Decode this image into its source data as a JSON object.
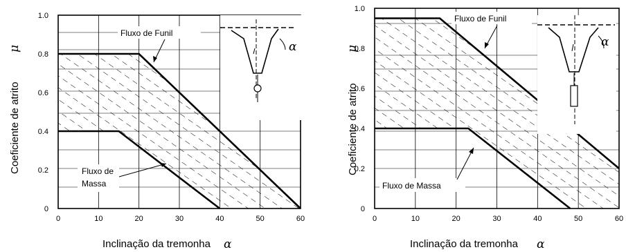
{
  "chart_data": [
    {
      "type": "area",
      "xlabel": "Inclinação da tremonha",
      "xlabel_symbol": "α",
      "ylabel": "Coeficiente de atrito",
      "ylabel_symbol": "μ",
      "x_ticks": [
        "0",
        "10",
        "20",
        "30",
        "40",
        "50",
        "60"
      ],
      "y_ticks": [
        "0",
        "0.2",
        "0.4",
        "0.6",
        "0.8",
        "1.0"
      ],
      "xlim": [
        0,
        60
      ],
      "ylim": [
        0,
        1.0
      ],
      "grid": true,
      "series": [
        {
          "name": "Fluxo de Funil",
          "x": [
            0,
            20,
            60
          ],
          "y": [
            0.8,
            0.8,
            0.0
          ]
        },
        {
          "name": "Fluxo de Massa",
          "x": [
            0,
            15,
            40
          ],
          "y": [
            0.4,
            0.4,
            0.0
          ]
        }
      ],
      "labels": {
        "funil": "Fluxo de Funil",
        "massa_line1": "Fluxo de",
        "massa_line2": "Massa"
      },
      "inset": {
        "angle_label": "α",
        "outlet": "circle"
      }
    },
    {
      "type": "area",
      "xlabel": "Inclinação da tremonha",
      "xlabel_symbol": "α",
      "ylabel": "Coeficiente de atrito",
      "ylabel_symbol": "μ",
      "x_ticks": [
        "0",
        "10",
        "20",
        "30",
        "40",
        "50",
        "60"
      ],
      "y_ticks": [
        "0",
        "0.2",
        "0.4",
        "0.6",
        "0.8",
        "1.0"
      ],
      "xlim": [
        0,
        60
      ],
      "ylim": [
        0,
        1.0
      ],
      "grid": true,
      "series": [
        {
          "name": "Fluxo de Funil",
          "x": [
            0,
            16,
            60
          ],
          "y": [
            0.95,
            0.95,
            0.2
          ]
        },
        {
          "name": "Fluxo de Massa",
          "x": [
            0,
            23,
            48
          ],
          "y": [
            0.4,
            0.4,
            0.0
          ]
        }
      ],
      "labels": {
        "funil": "Fluxo de Funil",
        "massa": "Fluxo de Massa"
      },
      "inset": {
        "angle_label": "α",
        "outlet": "slot"
      }
    }
  ]
}
